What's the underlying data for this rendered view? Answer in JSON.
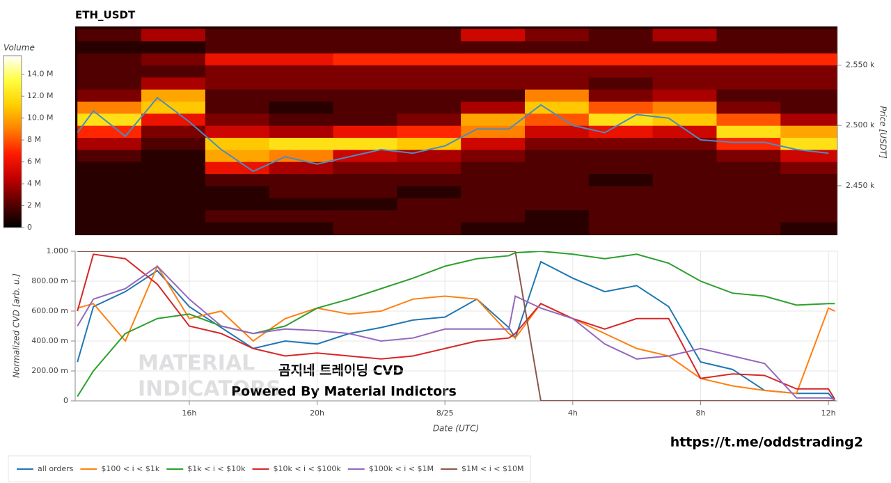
{
  "chart_data": [
    {
      "type": "heatmap",
      "title": "ETH_USDT",
      "x_edges": [
        12.5,
        14.5,
        16.5,
        18.5,
        20.5,
        22.5,
        24.5,
        26.5,
        28.5,
        30.5,
        32.5,
        34.5,
        36.5
      ],
      "y_edges": [
        2410,
        2420,
        2430,
        2440,
        2450,
        2460,
        2470,
        2480,
        2490,
        2500,
        2510,
        2520,
        2530,
        2540,
        2550,
        2560,
        2570,
        2580
      ],
      "values": [
        [
          1,
          1,
          1,
          1,
          2,
          2,
          1,
          1,
          2,
          2,
          2,
          1
        ],
        [
          1,
          1,
          2,
          2,
          2,
          2,
          2,
          1,
          2,
          2,
          2,
          2
        ],
        [
          1,
          1,
          1,
          1,
          1,
          2,
          2,
          2,
          2,
          2,
          2,
          2
        ],
        [
          1,
          1,
          1,
          2,
          2,
          1,
          2,
          2,
          2,
          2,
          2,
          2
        ],
        [
          1,
          1,
          2,
          2,
          2,
          2,
          2,
          2,
          1,
          2,
          2,
          2
        ],
        [
          1,
          1,
          6,
          4,
          3,
          3,
          2,
          2,
          2,
          2,
          2,
          3
        ],
        [
          2,
          1,
          10,
          9,
          5,
          4,
          3,
          2,
          2,
          2,
          3,
          5
        ],
        [
          4,
          2,
          11,
          12,
          12,
          11,
          5,
          3,
          3,
          3,
          7,
          12
        ],
        [
          7,
          3,
          5,
          4,
          6,
          7,
          9,
          5,
          6,
          5,
          12,
          10
        ],
        [
          12,
          6,
          3,
          2,
          2,
          3,
          10,
          8,
          12,
          11,
          8,
          4
        ],
        [
          9,
          11,
          2,
          1,
          2,
          2,
          4,
          11,
          8,
          9,
          3,
          2
        ],
        [
          3,
          10,
          2,
          2,
          2,
          2,
          2,
          9,
          3,
          4,
          2,
          2
        ],
        [
          2,
          4,
          3,
          3,
          3,
          3,
          3,
          3,
          2,
          3,
          3,
          3
        ],
        [
          2,
          2,
          3,
          3,
          3,
          3,
          3,
          3,
          3,
          3,
          3,
          3
        ],
        [
          2,
          3,
          6,
          6,
          7,
          7,
          7,
          7,
          7,
          7,
          7,
          7
        ],
        [
          1,
          1,
          2,
          2,
          2,
          2,
          2,
          2,
          2,
          2,
          2,
          2
        ],
        [
          2,
          4,
          2,
          2,
          2,
          2,
          5,
          3,
          2,
          4,
          2,
          2
        ]
      ],
      "colormap": [
        "#000000",
        "#5a0000",
        "#c00000",
        "#ff1a00",
        "#ff8000",
        "#ffd000",
        "#ffff40",
        "#ffffff"
      ],
      "colorbar": {
        "title": "Volume",
        "lim": [
          0,
          15.7
        ],
        "ticks": [
          0,
          {
            "value": 2,
            "label": "2 M"
          },
          {
            "value": 4,
            "label": "4 M"
          },
          {
            "value": 6,
            "label": "6 M"
          },
          {
            "value": 8,
            "label": "8 M"
          },
          {
            "value": 10,
            "label": "10.0 M"
          },
          {
            "value": 12,
            "label": "12.0 M"
          },
          {
            "value": 14,
            "label": "14.0 M"
          }
        ]
      },
      "price_line": {
        "color": "#4a8cc4",
        "x": [
          12.5,
          13,
          14,
          15,
          16,
          17,
          18,
          19,
          20,
          21,
          22,
          23,
          24,
          25,
          26,
          27,
          28,
          29,
          30,
          31,
          32,
          33,
          34,
          35,
          36
        ],
        "values": [
          2494,
          2512,
          2491,
          2523,
          2503,
          2480,
          2462,
          2474,
          2468,
          2474,
          2480,
          2477,
          2483,
          2497,
          2497,
          2517,
          2500,
          2494,
          2509,
          2506,
          2488,
          2486,
          2486,
          2480,
          2477
        ]
      },
      "xlim": [
        12.43,
        36.28
      ],
      "ylim": [
        2409,
        2582
      ],
      "yticks": [
        {
          "value": 2450,
          "label": "2.450 k"
        },
        {
          "value": 2500,
          "label": "2.500 k"
        },
        {
          "value": 2550,
          "label": "2.550 k"
        }
      ],
      "ylabel": "Price [USDT]"
    },
    {
      "type": "line",
      "ylabel": "Normalized CVD [arb. u.]",
      "xlabel": "Date (UTC)",
      "x": [
        12.5,
        13,
        14,
        15,
        16,
        17,
        18,
        19,
        20,
        21,
        22,
        23,
        24,
        25,
        26,
        26.2,
        27,
        28,
        29,
        30,
        31,
        32,
        33,
        34,
        35,
        36,
        36.2
      ],
      "series": [
        {
          "name": "all orders",
          "color": "#1f77b4",
          "values": [
            0.26,
            0.63,
            0.73,
            0.87,
            0.63,
            0.49,
            0.35,
            0.4,
            0.38,
            0.45,
            0.49,
            0.54,
            0.56,
            0.68,
            0.49,
            0.42,
            0.93,
            0.82,
            0.73,
            0.77,
            0.63,
            0.26,
            0.21,
            0.07,
            0.05,
            0.05,
            0.0
          ]
        },
        {
          "name": "$100 < i < $1k",
          "color": "#ff7f0e",
          "values": [
            0.62,
            0.65,
            0.4,
            0.9,
            0.55,
            0.6,
            0.4,
            0.55,
            0.62,
            0.58,
            0.6,
            0.68,
            0.7,
            0.68,
            0.45,
            0.42,
            0.65,
            0.55,
            0.45,
            0.35,
            0.3,
            0.15,
            0.1,
            0.07,
            0.05,
            0.62,
            0.6
          ]
        },
        {
          "name": "$1k < i < $10k",
          "color": "#2ca02c",
          "values": [
            0.03,
            0.2,
            0.45,
            0.55,
            0.58,
            0.5,
            0.45,
            0.5,
            0.62,
            0.68,
            0.75,
            0.82,
            0.9,
            0.95,
            0.97,
            0.99,
            1.0,
            0.98,
            0.95,
            0.98,
            0.92,
            0.8,
            0.72,
            0.7,
            0.64,
            0.65,
            0.65
          ]
        },
        {
          "name": "$10k < i < $100k",
          "color": "#d62728",
          "values": [
            0.6,
            0.98,
            0.95,
            0.78,
            0.5,
            0.45,
            0.35,
            0.3,
            0.32,
            0.3,
            0.28,
            0.3,
            0.35,
            0.4,
            0.42,
            0.45,
            0.65,
            0.55,
            0.48,
            0.55,
            0.55,
            0.15,
            0.18,
            0.17,
            0.08,
            0.08,
            0.01
          ]
        },
        {
          "name": "$100k < i < $1M",
          "color": "#9467bd",
          "values": [
            0.5,
            0.68,
            0.75,
            0.9,
            0.68,
            0.5,
            0.45,
            0.48,
            0.47,
            0.45,
            0.4,
            0.42,
            0.48,
            0.48,
            0.48,
            0.7,
            0.62,
            0.55,
            0.38,
            0.28,
            0.3,
            0.35,
            0.3,
            0.25,
            0.02,
            0.02,
            0.01
          ]
        },
        {
          "name": "$1M < i < $10M",
          "color": "#8c564b",
          "values": [
            1,
            1,
            1,
            1,
            1,
            1,
            1,
            1,
            1,
            1,
            1,
            1,
            1,
            1,
            1,
            1,
            0,
            0,
            0,
            0,
            0,
            0,
            0,
            0,
            0,
            0,
            0
          ]
        }
      ],
      "xlim": [
        12.43,
        36.28
      ],
      "xticks": [
        {
          "value": 16,
          "label": "16h"
        },
        {
          "value": 20,
          "label": "20h"
        },
        {
          "value": 24,
          "label": "8/25"
        },
        {
          "value": 28,
          "label": "4h"
        },
        {
          "value": 32,
          "label": "8h"
        },
        {
          "value": 36,
          "label": "12h"
        }
      ],
      "ylim": [
        0,
        1
      ],
      "yticks": [
        0,
        {
          "value": 0.2,
          "label": "200.00 m"
        },
        {
          "value": 0.4,
          "label": "400.00 m"
        },
        {
          "value": 0.6,
          "label": "600.00 m"
        },
        {
          "value": 0.8,
          "label": "800.00 m"
        },
        {
          "value": 1,
          "label": "1.000"
        }
      ],
      "grid": true,
      "legend": "bottom-left"
    }
  ],
  "watermark": [
    "MATERIAL",
    "INDICATORS"
  ],
  "caption": "곰지네 트레이딩 CVD",
  "powered_by": "Powered By Material Indictors",
  "link": "https://t.me/oddstrading2"
}
